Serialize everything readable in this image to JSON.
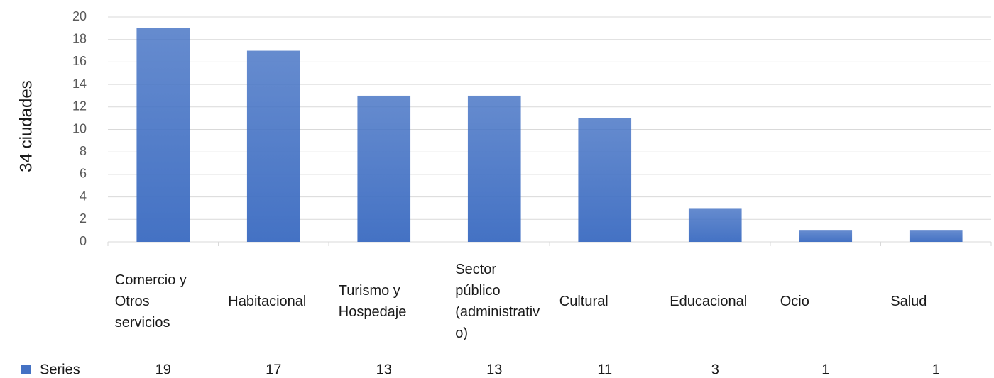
{
  "chart_data": {
    "type": "bar",
    "y_axis_label": "34 ciudades",
    "categories": [
      "Comercio y Otros servicios",
      "Habitacional",
      "Turismo y Hospedaje",
      "Sector público (administrativo)",
      "Cultural",
      "Educacional",
      "Ocio",
      "Salud"
    ],
    "series": [
      {
        "name": "Series",
        "color": "#4472c4",
        "values": [
          19,
          17,
          13,
          13,
          11,
          3,
          1,
          1
        ]
      }
    ],
    "ylim": [
      0,
      20
    ],
    "yticks": [
      0,
      2,
      4,
      6,
      8,
      10,
      12,
      14,
      16,
      18,
      20
    ],
    "grid": true
  }
}
